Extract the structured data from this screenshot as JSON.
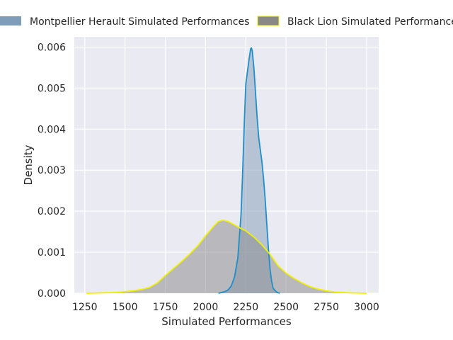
{
  "chart_data": {
    "type": "area",
    "title": "",
    "xlabel": "Simulated Performances",
    "ylabel": "Density",
    "xlim": [
      1185,
      3075
    ],
    "ylim": [
      0,
      0.00625
    ],
    "xticks": [
      "1250",
      "1500",
      "1750",
      "2000",
      "2250",
      "2500",
      "2750",
      "3000"
    ],
    "yticks": [
      "0.000",
      "0.001",
      "0.002",
      "0.003",
      "0.004",
      "0.005",
      "0.006"
    ],
    "grid": true,
    "legend_position": "top",
    "series": [
      {
        "name": "Montpellier Herault Simulated Performances",
        "fill_color": "#7f9cb8",
        "line_color": "#1f8fc9",
        "x": [
          2080,
          2100,
          2120,
          2140,
          2160,
          2180,
          2200,
          2220,
          2230,
          2240,
          2250,
          2260,
          2270,
          2280,
          2285,
          2290,
          2300,
          2310,
          2320,
          2330,
          2340,
          2350,
          2360,
          2370,
          2380,
          2390,
          2400,
          2410,
          2420,
          2440,
          2460
        ],
        "y": [
          0.0,
          2e-05,
          4e-05,
          8e-05,
          0.00018,
          0.0004,
          0.00085,
          0.0019,
          0.0029,
          0.0041,
          0.0051,
          0.0054,
          0.0057,
          0.00596,
          0.00598,
          0.0059,
          0.0055,
          0.0049,
          0.0043,
          0.0038,
          0.0035,
          0.0032,
          0.0028,
          0.0023,
          0.0017,
          0.0011,
          0.0006,
          0.0003,
          0.00012,
          3e-05,
          0.0
        ]
      },
      {
        "name": "Black Lion Simulated Performances",
        "fill_color": "#888888",
        "line_color": "#f0f000",
        "x": [
          1260,
          1350,
          1450,
          1550,
          1600,
          1650,
          1700,
          1750,
          1800,
          1850,
          1900,
          1950,
          2000,
          2050,
          2080,
          2110,
          2130,
          2150,
          2200,
          2250,
          2300,
          2350,
          2400,
          2450,
          2500,
          2550,
          2600,
          2650,
          2700,
          2750,
          2800,
          2900,
          3000
        ],
        "y": [
          0.0,
          1e-05,
          2e-05,
          6e-05,
          9e-05,
          0.00014,
          0.00025,
          0.00043,
          0.0006,
          0.00077,
          0.00095,
          0.00115,
          0.0014,
          0.00163,
          0.00175,
          0.00178,
          0.00176,
          0.00173,
          0.00162,
          0.00152,
          0.00137,
          0.00118,
          0.00095,
          0.00067,
          0.00049,
          0.00036,
          0.00025,
          0.00016,
          0.0001,
          6e-05,
          3e-05,
          1e-05,
          0.0
        ]
      }
    ]
  }
}
